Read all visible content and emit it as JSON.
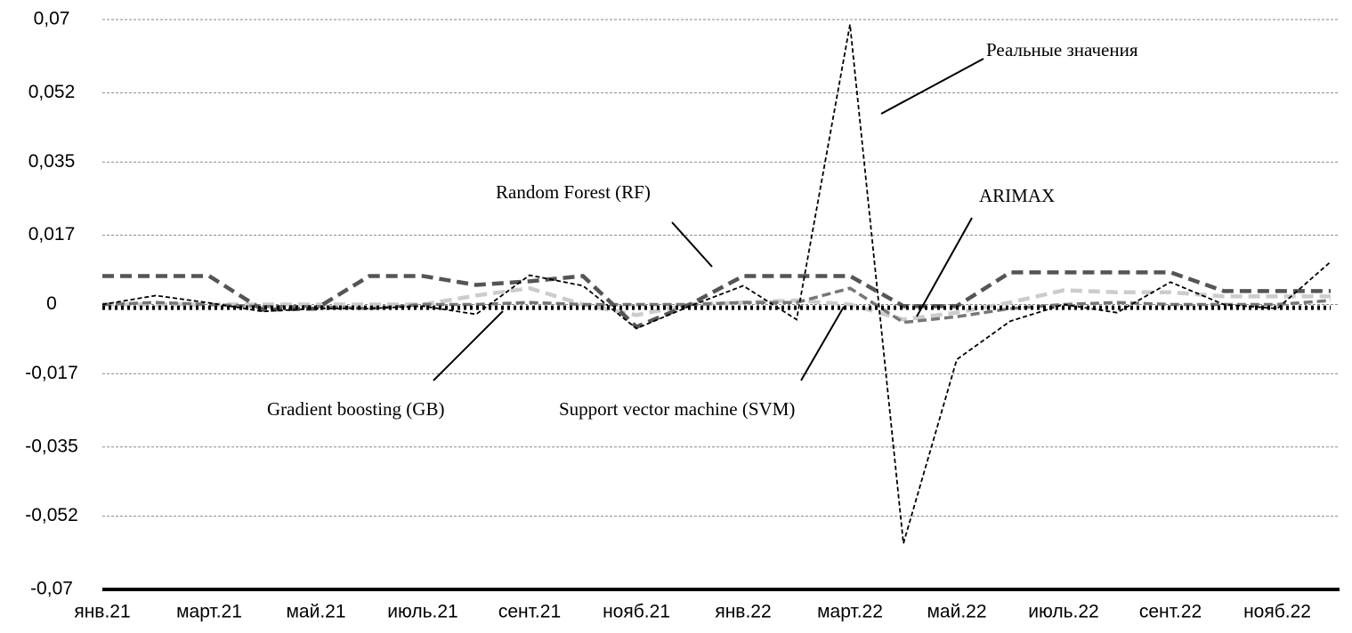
{
  "chart_data": {
    "type": "line",
    "categories": [
      "янв.21",
      null,
      "март.21",
      null,
      "май.21",
      null,
      "июль.21",
      null,
      "сент.21",
      null,
      "нояб.21",
      null,
      "янв.22",
      null,
      "март.22",
      null,
      "май.22",
      null,
      "июль.22",
      null,
      "сент.22",
      null,
      "нояб.22",
      null
    ],
    "series": [
      {
        "name": "Реальные значения",
        "color": "#000000",
        "values": [
          0,
          0.0022,
          0.0004,
          -0.0017,
          -0.001,
          -0.001,
          -0.0004,
          -0.0024,
          0.0072,
          0.0046,
          -0.0059,
          -0.0004,
          0.0046,
          -0.0037,
          0.0688,
          -0.0587,
          -0.0135,
          -0.0041,
          0,
          -0.002,
          0.0055,
          0,
          -0.001,
          0.0105
        ]
      },
      {
        "name": "Random Forest (RF)",
        "color": "#555555",
        "values": [
          0.007,
          0.007,
          0.007,
          -0.0013,
          -0.001,
          0.007,
          0.007,
          0.0048,
          0.0057,
          0.007,
          -0.0055,
          0,
          0.007,
          0.007,
          0.007,
          -0.0004,
          -0.0004,
          0.0079,
          0.0079,
          0.0079,
          0.0079,
          0.0033,
          0.0033,
          0.0033
        ]
      },
      {
        "name": "ARIMAX",
        "color": "#777777",
        "values": [
          0,
          0.0005,
          0,
          -0.0005,
          -0.0005,
          -0.001,
          0,
          0,
          0.0005,
          0,
          0,
          0,
          0.0005,
          0.0005,
          0.004,
          -0.0044,
          -0.003,
          -0.001,
          0,
          0.0005,
          0,
          0,
          0,
          0.001
        ]
      },
      {
        "name": "Gradient boosting (GB)",
        "color": "#cccccc",
        "values": [
          0,
          0,
          0,
          0,
          0,
          0,
          0,
          0.0022,
          0.004,
          0,
          -0.0026,
          0,
          0.0005,
          0.001,
          0,
          -0.0037,
          -0.002,
          0.0005,
          0.0035,
          0.003,
          0.003,
          0.002,
          0.002,
          0.002
        ]
      },
      {
        "name": "Support vector machine (SVM)",
        "color": "#000000",
        "values": [
          -0.0008,
          -0.0008,
          -0.0008,
          -0.0008,
          -0.0008,
          -0.0008,
          -0.0008,
          -0.0008,
          -0.0008,
          -0.0008,
          -0.0008,
          -0.0008,
          -0.0008,
          -0.0008,
          -0.0008,
          -0.0008,
          -0.0008,
          -0.0008,
          -0.0008,
          -0.0008,
          -0.0008,
          -0.0008,
          -0.0008,
          -0.0008
        ]
      }
    ],
    "ylim": [
      -0.07,
      0.07
    ],
    "yticks": [
      {
        "value": 0.07,
        "label": "0,07"
      },
      {
        "value": 0.052,
        "label": "0,052"
      },
      {
        "value": 0.035,
        "label": "0,035"
      },
      {
        "value": 0.017,
        "label": "0,017"
      },
      0,
      {
        "value": -0.017,
        "label": "-0,017"
      },
      {
        "value": -0.035,
        "label": "-0,035"
      },
      {
        "value": -0.052,
        "label": "-0,052"
      },
      {
        "value": -0.07,
        "label": "-0,07"
      }
    ],
    "grid": true
  }
}
